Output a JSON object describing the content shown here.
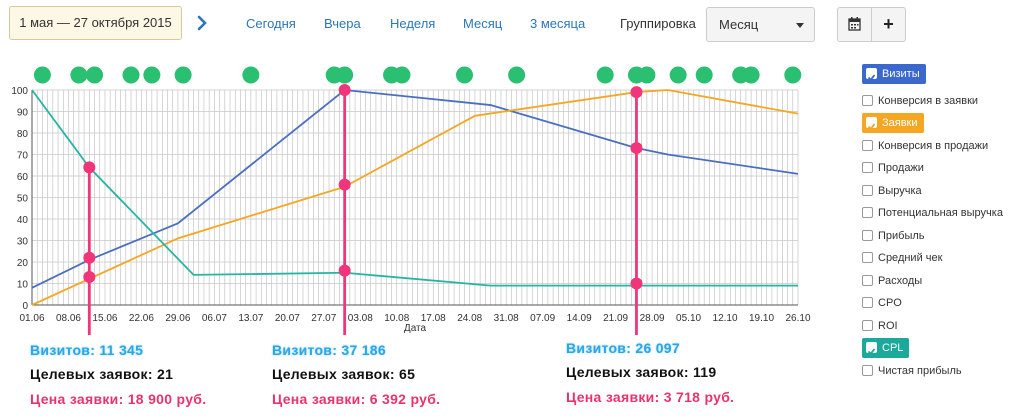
{
  "toolbar": {
    "date_range": "1 мая — 27 октября 2015",
    "periods": [
      "Сегодня",
      "Вчера",
      "Неделя",
      "Месяц",
      "3 месяца"
    ],
    "grouping_label": "Группировка",
    "grouping_value": "Месяц",
    "add_label": "+"
  },
  "chart_data": {
    "type": "line",
    "xlabel": "Дата",
    "x_ticks": [
      "01.06",
      "08.06",
      "15.06",
      "22.06",
      "29.06",
      "06.07",
      "13.07",
      "20.07",
      "27.07",
      "03.08",
      "10.08",
      "17.08",
      "24.08",
      "31.08",
      "07.09",
      "14.09",
      "21.09",
      "28.09",
      "05.10",
      "12.10",
      "19.10",
      "26.10"
    ],
    "x_range": [
      "2015-06-01",
      "2015-10-26"
    ],
    "ylim": [
      0,
      100
    ],
    "y_ticks": [
      0,
      10,
      20,
      30,
      40,
      50,
      60,
      70,
      80,
      90,
      100
    ],
    "grid": true,
    "legend_position": "right",
    "series": [
      {
        "name": "Визиты",
        "color": "#4a6fc0",
        "points": [
          [
            "2015-06-01",
            8
          ],
          [
            "2015-06-12",
            21
          ],
          [
            "2015-06-29",
            38
          ],
          [
            "2015-07-31",
            100
          ],
          [
            "2015-08-28",
            93
          ],
          [
            "2015-09-25",
            73
          ],
          [
            "2015-10-01",
            70
          ],
          [
            "2015-10-26",
            61
          ]
        ]
      },
      {
        "name": "Заявки",
        "color": "#f5a623",
        "points": [
          [
            "2015-06-01",
            0
          ],
          [
            "2015-06-29",
            31
          ],
          [
            "2015-07-31",
            55
          ],
          [
            "2015-08-25",
            88
          ],
          [
            "2015-09-25",
            99
          ],
          [
            "2015-10-01",
            100
          ],
          [
            "2015-10-26",
            89
          ]
        ]
      },
      {
        "name": "CPL",
        "color": "#25b5a5",
        "points": [
          [
            "2015-06-01",
            100
          ],
          [
            "2015-06-12",
            64
          ],
          [
            "2015-07-02",
            14
          ],
          [
            "2015-07-31",
            15
          ],
          [
            "2015-08-28",
            9
          ],
          [
            "2015-10-26",
            9
          ]
        ]
      }
    ],
    "markers": [
      {
        "date": "2015-06-12",
        "points": [
          64,
          22,
          13
        ]
      },
      {
        "date": "2015-07-31",
        "points": [
          100,
          56,
          16
        ]
      },
      {
        "date": "2015-09-25",
        "points": [
          99,
          73,
          10
        ]
      }
    ],
    "event_dates": [
      "2015-06-03",
      "2015-06-10",
      "2015-06-13",
      "2015-06-20",
      "2015-06-24",
      "2015-06-30",
      "2015-07-13",
      "2015-07-29",
      "2015-07-31",
      "2015-08-09",
      "2015-08-11",
      "2015-08-23",
      "2015-09-02",
      "2015-09-19",
      "2015-09-25",
      "2015-09-27",
      "2015-10-03",
      "2015-10-08",
      "2015-10-15",
      "2015-10-17",
      "2015-10-25"
    ]
  },
  "legend": [
    {
      "label": "Визиты",
      "checked": true,
      "color": "#3a68cc"
    },
    {
      "label": "Конверсия в заявки",
      "checked": false
    },
    {
      "label": "Заявки",
      "checked": true,
      "color": "#f5a623"
    },
    {
      "label": "Конверсия в продажи",
      "checked": false
    },
    {
      "label": "Продажи",
      "checked": false
    },
    {
      "label": "Выручка",
      "checked": false
    },
    {
      "label": "Потенциальная выручка",
      "checked": false
    },
    {
      "label": "Прибыль",
      "checked": false
    },
    {
      "label": "Средний чек",
      "checked": false
    },
    {
      "label": "Расходы",
      "checked": false
    },
    {
      "label": "CPO",
      "checked": false
    },
    {
      "label": "ROI",
      "checked": false
    },
    {
      "label": "CPL",
      "checked": true,
      "color": "#1aa99a"
    },
    {
      "label": "Чистая прибыль",
      "checked": false
    }
  ],
  "annotations": [
    {
      "visits": "Визитов: 11 345",
      "leads": "Целевых заявок: 21",
      "price": "Цена заявки: 18 900 руб."
    },
    {
      "visits": "Визитов: 37 186",
      "leads": "Целевых заявок: 65",
      "price": "Цена заявки: 6 392 руб."
    },
    {
      "visits": "Визитов: 26 097",
      "leads": "Целевых заявок: 119",
      "price": "Цена заявки: 3 718 руб."
    }
  ],
  "colors": {
    "link": "#2b76b9",
    "event_dot": "#2bbf72",
    "marker": "#f0357a",
    "grid": "#bbbbbb"
  }
}
